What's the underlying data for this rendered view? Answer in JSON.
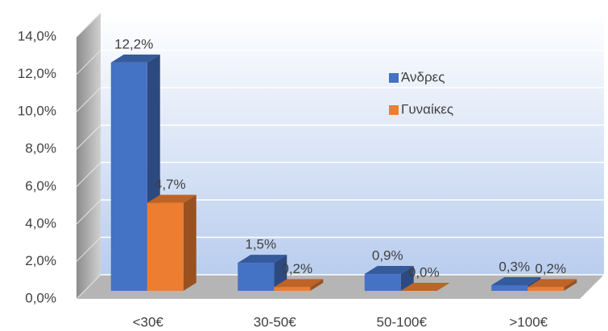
{
  "chart_data": {
    "type": "bar3d",
    "categories": [
      "<30€",
      "30-50€",
      "50-100€",
      ">100€"
    ],
    "series": [
      {
        "name": "Άνδρες",
        "color": "#4472c4",
        "values": [
          12.2,
          1.5,
          0.9,
          0.3
        ],
        "value_labels": [
          "12,2%",
          "1,5%",
          "0,9%",
          "0,3%"
        ]
      },
      {
        "name": "Γυναίκες",
        "color": "#ed7d31",
        "values": [
          4.7,
          0.2,
          0.0,
          0.2
        ],
        "value_labels": [
          "4,7%",
          "0,2%",
          "0,0%",
          "0,2%"
        ]
      }
    ],
    "ylim": [
      0,
      14
    ],
    "yticks": [
      {
        "value": 0,
        "label": "0,0%"
      },
      {
        "value": 2,
        "label": "2,0%"
      },
      {
        "value": 4,
        "label": "4,0%"
      },
      {
        "value": 6,
        "label": "6,0%"
      },
      {
        "value": 8,
        "label": "8,0%"
      },
      {
        "value": 10,
        "label": "10,0%"
      },
      {
        "value": 12,
        "label": "12,0%"
      },
      {
        "value": 14,
        "label": "14,0%"
      }
    ],
    "grid": true,
    "legend": "top-right"
  }
}
